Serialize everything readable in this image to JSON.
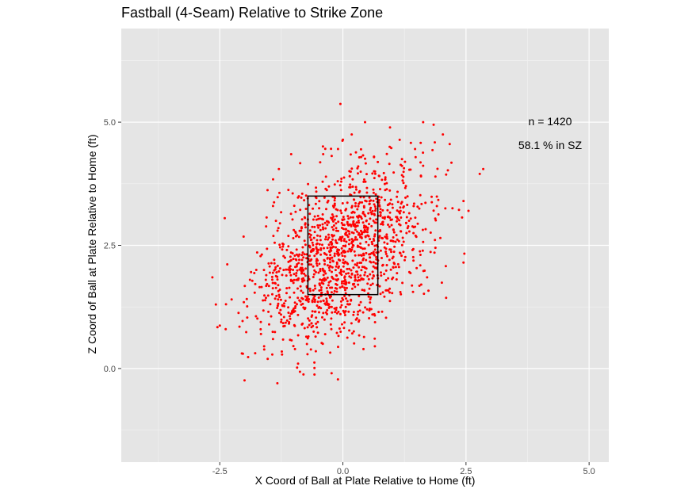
{
  "chart_data": {
    "type": "scatter",
    "title": "Fastball (4-Seam) Relative to Strike Zone",
    "xlabel": "X Coord of Ball at Plate Relative to Home (ft)",
    "ylabel": "Z Coord of Ball at Plate Relative to Home (ft)",
    "xlim": [
      -4.5,
      5.4
    ],
    "ylim": [
      -1.9,
      6.9
    ],
    "x_ticks": [
      -2.5,
      0.0,
      2.5,
      5.0
    ],
    "x_tick_labels": [
      "-2.5",
      "0.0",
      "2.5",
      "5.0"
    ],
    "y_ticks": [
      0.0,
      2.5,
      5.0
    ],
    "y_tick_labels": [
      "0.0",
      "2.5",
      "5.0"
    ],
    "grid": true,
    "point_color": "#ff0000",
    "panel_background": "#e5e5e5",
    "strike_zone": {
      "x": [
        -0.71,
        0.71
      ],
      "z": [
        1.5,
        3.5
      ]
    },
    "annotations": [
      "n = 1420",
      "58.1 % in SZ"
    ],
    "n": 1420,
    "pct_in_sz": 58.1,
    "points_summary": {
      "count": 1420,
      "x_mean": 0.0,
      "x_sd": 0.85,
      "z_mean": 2.35,
      "z_sd": 0.95
    },
    "points": [
      [
        -0.05,
        5.37
      ],
      [
        0.45,
        5.0
      ],
      [
        1.63,
        5.0
      ],
      [
        2.03,
        4.75
      ],
      [
        1.58,
        4.58
      ],
      [
        2.78,
        3.95
      ],
      [
        2.85,
        4.05
      ],
      [
        2.45,
        3.4
      ],
      [
        2.55,
        3.2
      ],
      [
        2.45,
        2.15
      ],
      [
        -2.58,
        1.3
      ],
      [
        -2.38,
        0.8
      ],
      [
        -2.03,
        0.3
      ],
      [
        -1.33,
        -0.3
      ],
      [
        -0.1,
        -0.22
      ],
      [
        -0.8,
        -0.12
      ],
      [
        -0.93,
        0.02
      ],
      [
        0.65,
        0.45
      ],
      [
        1.71,
        1.85
      ],
      [
        1.38,
        4.58
      ],
      [
        -1.05,
        4.35
      ],
      [
        -1.3,
        4.05
      ],
      [
        -0.4,
        4.35
      ],
      [
        0.18,
        4.75
      ],
      [
        0.95,
        4.5
      ],
      [
        1.2,
        4.25
      ],
      [
        -1.53,
        3.62
      ],
      [
        -2.4,
        3.05
      ],
      [
        2.08,
        3.25
      ],
      [
        1.98,
        2.65
      ],
      [
        1.88,
        2.45
      ],
      [
        -2.65,
        1.85
      ],
      [
        -2.1,
        0.85
      ],
      [
        -1.6,
        0.45
      ],
      [
        -0.55,
        0.35
      ]
    ]
  }
}
